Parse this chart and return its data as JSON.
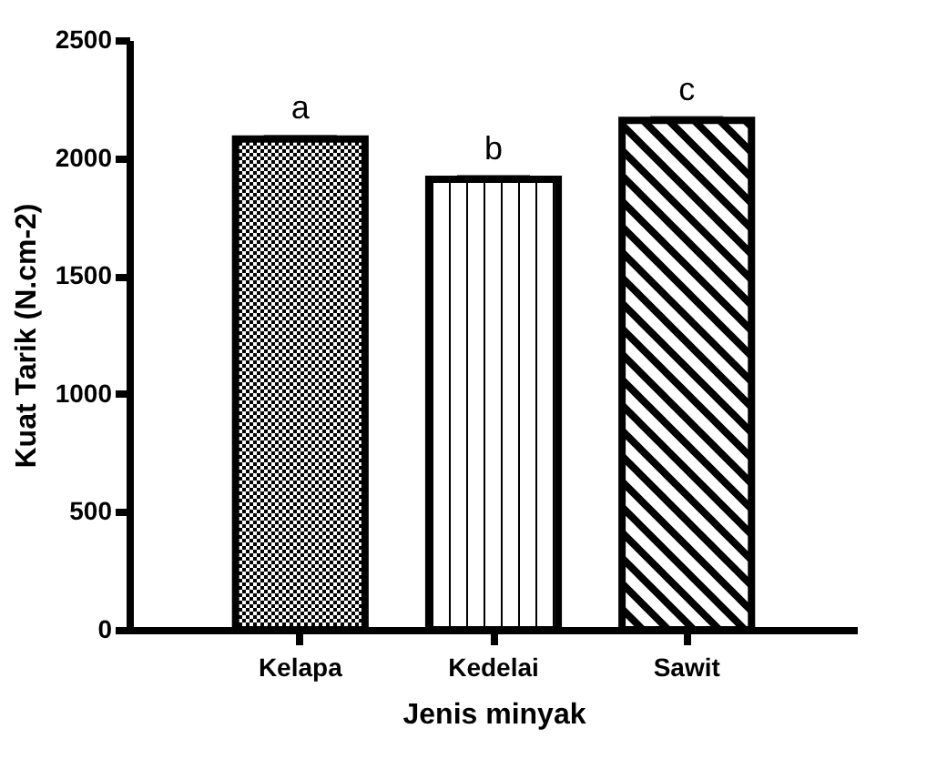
{
  "chart_data": {
    "type": "bar",
    "xlabel": "Jenis minyak",
    "ylabel": "Kuat Tarik (N.cm-2)",
    "categories": [
      "Kelapa",
      "Kedelai",
      "Sawit"
    ],
    "values": [
      2080,
      1910,
      2160
    ],
    "errors": [
      10,
      10,
      10
    ],
    "colors": [
      "#000000",
      "#000000",
      "#000000"
    ],
    "ylim": [
      0,
      2500
    ],
    "yticks": [
      0,
      500,
      1000,
      1500,
      2000,
      2500
    ],
    "annotations": [
      {
        "text": "a",
        "x": "Kelapa",
        "y": 2120
      },
      {
        "text": "b",
        "x": "Kedelai",
        "y": 1950
      },
      {
        "text": "c",
        "x": "Sawit",
        "y": 2200
      }
    ]
  }
}
